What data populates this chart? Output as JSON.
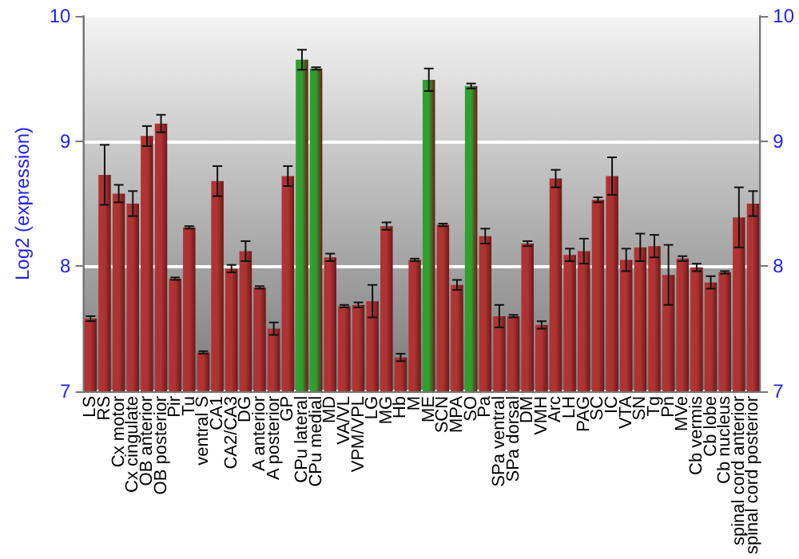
{
  "chart_data": {
    "type": "bar",
    "ylabel": "Log2 (expression)",
    "categories": [
      "LS",
      "RS",
      "Cx motor",
      "Cx cingulate",
      "OB anterior",
      "OB posterior",
      "Pir",
      "Tu",
      "ventral S",
      "CA1",
      "CA2/CA3",
      "DG",
      "A anterior",
      "A posterior",
      "GP",
      "CPu lateral",
      "CPu medial",
      "MD",
      "VA/VL",
      "VPM/VPL",
      "LG",
      "MG",
      "Hb",
      "M",
      "ME",
      "SCN",
      "MPA",
      "SO",
      "Pa",
      "SPa ventral",
      "SPa dorsal",
      "DM",
      "VMH",
      "Arc",
      "LH",
      "PAG",
      "SC",
      "IC",
      "VTA",
      "SN",
      "Tg",
      "Pn",
      "MVe",
      "Cb vermis",
      "Cb lobe",
      "Cb nucleus",
      "spinal cord anterior",
      "spinal cord posterior"
    ],
    "values": [
      7.58,
      8.73,
      8.58,
      8.5,
      9.04,
      9.14,
      7.9,
      8.31,
      7.31,
      8.68,
      7.98,
      8.12,
      7.83,
      7.5,
      8.72,
      9.65,
      9.58,
      8.07,
      7.68,
      7.69,
      7.72,
      8.32,
      7.27,
      8.05,
      9.49,
      8.33,
      7.85,
      9.44,
      8.24,
      7.6,
      7.6,
      8.18,
      7.53,
      8.7,
      8.09,
      8.12,
      8.53,
      8.72,
      8.05,
      8.15,
      8.16,
      7.93,
      8.06,
      7.99,
      7.87,
      7.95,
      8.39,
      8.5
    ],
    "errors": [
      0.02,
      0.24,
      0.07,
      0.1,
      0.08,
      0.07,
      0.01,
      0.01,
      0.01,
      0.12,
      0.03,
      0.08,
      0.01,
      0.05,
      0.08,
      0.08,
      0.01,
      0.03,
      0.01,
      0.02,
      0.13,
      0.03,
      0.03,
      0.01,
      0.09,
      0.01,
      0.04,
      0.02,
      0.06,
      0.09,
      0.01,
      0.02,
      0.03,
      0.07,
      0.05,
      0.1,
      0.02,
      0.15,
      0.09,
      0.11,
      0.09,
      0.24,
      0.02,
      0.03,
      0.05,
      0.01,
      0.24,
      0.1
    ],
    "colors": [
      "#b03333",
      "#b03333",
      "#b03333",
      "#b03333",
      "#b03333",
      "#b03333",
      "#b03333",
      "#b03333",
      "#b03333",
      "#b03333",
      "#b03333",
      "#b03333",
      "#b03333",
      "#b03333",
      "#b03333",
      "#2ea02e",
      "#2ea02e",
      "#b03333",
      "#b03333",
      "#b03333",
      "#b03333",
      "#b03333",
      "#b03333",
      "#b03333",
      "#2ea02e",
      "#b03333",
      "#b03333",
      "#2ea02e",
      "#b03333",
      "#b03333",
      "#b03333",
      "#b03333",
      "#b03333",
      "#b03333",
      "#b03333",
      "#b03333",
      "#b03333",
      "#b03333",
      "#b03333",
      "#b03333",
      "#b03333",
      "#b03333",
      "#b03333",
      "#b03333",
      "#b03333",
      "#b03333",
      "#b03333",
      "#b03333"
    ],
    "ylim": [
      7,
      10
    ],
    "yticks": [
      7,
      8,
      9,
      10
    ],
    "y2lim": [
      7,
      10
    ],
    "y2ticks": [
      7,
      8,
      9,
      10
    ],
    "grid": "y"
  }
}
